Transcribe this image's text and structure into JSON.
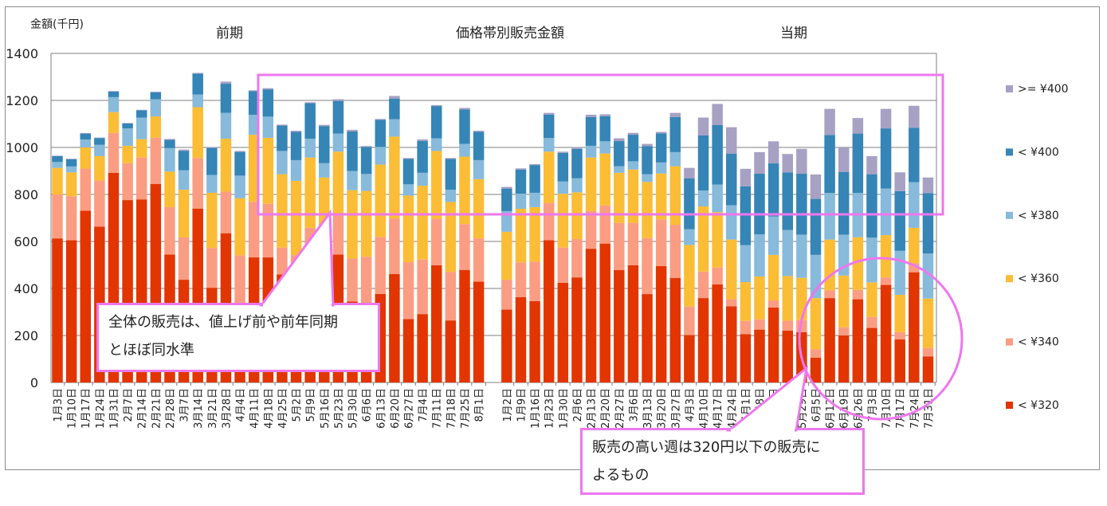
{
  "chart_data": {
    "type": "bar",
    "stacked": true,
    "title": "価格帯別販売金額",
    "ylabel": "金額(千円)",
    "ylim": [
      0,
      1400
    ],
    "yticks": [
      0,
      200,
      400,
      600,
      800,
      1000,
      1200,
      1400
    ],
    "grid": true,
    "legend_position": "right",
    "groups": [
      {
        "label": "前期",
        "categories": [
          "1月3日",
          "1月10日",
          "1月17日",
          "1月24日",
          "1月31日",
          "2月7日",
          "2月14日",
          "2月21日",
          "2月28日",
          "3月7日",
          "3月14日",
          "3月21日",
          "3月28日",
          "4月4日",
          "4月11日",
          "4月18日",
          "4月25日",
          "5月2日",
          "5月9日",
          "5月16日",
          "5月23日",
          "5月30日",
          "6月6日",
          "6月13日",
          "6月20日",
          "6月27日",
          "7月4日",
          "7月11日",
          "7月18日",
          "7月25日",
          "8月1日"
        ],
        "series": [
          {
            "name": "< ¥320",
            "values": [
              613,
              605,
              731,
              663,
              892,
              776,
              779,
              845,
              544,
              437,
              740,
              403,
              635,
              330,
              532,
              532,
              460,
              470,
              400,
              420,
              544,
              345,
              340,
              377,
              461,
              270,
              291,
              499,
              264,
              479,
              429
            ]
          },
          {
            "name": "< ¥340",
            "values": [
              187,
              187,
              179,
              196,
              170,
              157,
              178,
              196,
              202,
              180,
              215,
              169,
              177,
              211,
              237,
              228,
              114,
              72,
              258,
              180,
              166,
              182,
              195,
              242,
              237,
              242,
              232,
              198,
              207,
              195,
              184
            ]
          },
          {
            "name": "< ¥360",
            "values": [
              113,
              102,
              90,
              104,
              88,
              74,
              78,
              91,
              151,
              203,
              216,
              235,
              225,
              243,
              285,
              281,
              312,
              316,
              299,
              272,
              272,
              291,
              280,
              308,
              348,
              283,
              314,
              288,
              297,
              287,
              252
            ]
          },
          {
            "name": "< ¥380",
            "values": [
              25,
              25,
              34,
              48,
              64,
              74,
              92,
              73,
              100,
              83,
              54,
              76,
              110,
              96,
              85,
              90,
              99,
              88,
              80,
              61,
              77,
              82,
              72,
              75,
              74,
              48,
              55,
              54,
              52,
              54,
              81
            ]
          },
          {
            "name": "< ¥400",
            "values": [
              25,
              31,
              25,
              29,
              24,
              21,
              31,
              29,
              35,
              83,
              89,
              115,
              124,
              101,
              101,
              116,
              108,
              120,
              151,
              158,
              139,
              168,
              115,
              115,
              88,
              108,
              135,
              137,
              131,
              146,
              120
            ]
          },
          {
            "name": ">= ¥400",
            "values": [
              2,
              2,
              2,
              2,
              2,
              2,
              2,
              3,
              4,
              5,
              3,
              4,
              9,
              4,
              3,
              5,
              4,
              5,
              4,
              5,
              7,
              7,
              4,
              4,
              11,
              4,
              7,
              4,
              4,
              7,
              5
            ]
          }
        ]
      },
      {
        "label": "当期",
        "categories": [
          "1月2日",
          "1月9日",
          "1月16日",
          "1月23日",
          "1月30日",
          "2月6日",
          "2月13日",
          "2月20日",
          "2月27日",
          "3月6日",
          "3月13日",
          "3月20日",
          "3月27日",
          "4月3日",
          "4月10日",
          "4月17日",
          "4月24日",
          "5月1日",
          "5月8日",
          "5月15日",
          "5月22日",
          "5月29日",
          "6月5日",
          "6月12日",
          "6月19日",
          "6月26日",
          "7月3日",
          "7月10日",
          "7月17日",
          "7月24日",
          "7月31日"
        ],
        "series": [
          {
            "name": "< ¥320",
            "values": [
              310,
              363,
              346,
              605,
              424,
              447,
              569,
              591,
              478,
              499,
              376,
              495,
              445,
              202,
              359,
              417,
              324,
              206,
              225,
              319,
              221,
              214,
              106,
              359,
              200,
              354,
              232,
              415,
              183,
              469,
              111
            ]
          },
          {
            "name": "< ¥340",
            "values": [
              127,
              148,
              168,
              159,
              150,
              163,
              160,
              162,
              201,
              180,
              238,
              199,
              226,
              121,
              113,
              72,
              30,
              56,
              44,
              30,
              42,
              51,
              36,
              33,
              35,
              40,
              47,
              32,
              31,
              38,
              36
            ]
          },
          {
            "name": "< ¥360",
            "values": [
              204,
              228,
              232,
              218,
              229,
              199,
              228,
              221,
              213,
              227,
              239,
              195,
              249,
              262,
              277,
              236,
              254,
              165,
              182,
              194,
              190,
              180,
              217,
              216,
              220,
              224,
              147,
              180,
              159,
              151,
              210
            ]
          },
          {
            "name": "< ¥380",
            "values": [
              88,
              64,
              61,
              58,
              52,
              60,
              50,
              52,
              28,
              35,
              33,
              47,
              60,
              67,
              68,
              117,
              146,
              157,
              179,
              163,
              196,
              184,
              184,
              198,
              174,
              188,
              190,
              198,
              187,
              194,
              192
            ]
          },
          {
            "name": "< ¥400",
            "values": [
              96,
              103,
              118,
              100,
              122,
              125,
              122,
              107,
              107,
              113,
              119,
              124,
              149,
              217,
              234,
              253,
              220,
              250,
              258,
              226,
              245,
              259,
              238,
              247,
              267,
              253,
              270,
              256,
              254,
              232,
              257
            ]
          },
          {
            "name": ">= ¥400",
            "values": [
              7,
              5,
              4,
              7,
              5,
              7,
              10,
              8,
              12,
              8,
              10,
              6,
              18,
              44,
              76,
              90,
              112,
              75,
              92,
              94,
              78,
              106,
              104,
              111,
              104,
              66,
              77,
              83,
              80,
              93,
              66
            ]
          }
        ]
      }
    ],
    "colors": {
      "< ¥320": "#E23500",
      "< ¥340": "#FB9D82",
      "< ¥360": "#FBBD35",
      "< ¥380": "#87BADB",
      "< ¥400": "#3585B6",
      ">= ¥400": "#A7A1C4"
    },
    "legend_order": [
      ">= ¥400",
      "< ¥400",
      "< ¥380",
      "< ¥360",
      "< ¥340",
      "< ¥320"
    ],
    "annotations": [
      {
        "lines": [
          "全体の販売は、値上げ前や前年同期",
          "とほぼ同水準"
        ]
      },
      {
        "lines": [
          "販売の高い週は320円以下の販売に",
          "よるもの"
        ]
      }
    ],
    "highlight_color": "#EE77EE"
  }
}
